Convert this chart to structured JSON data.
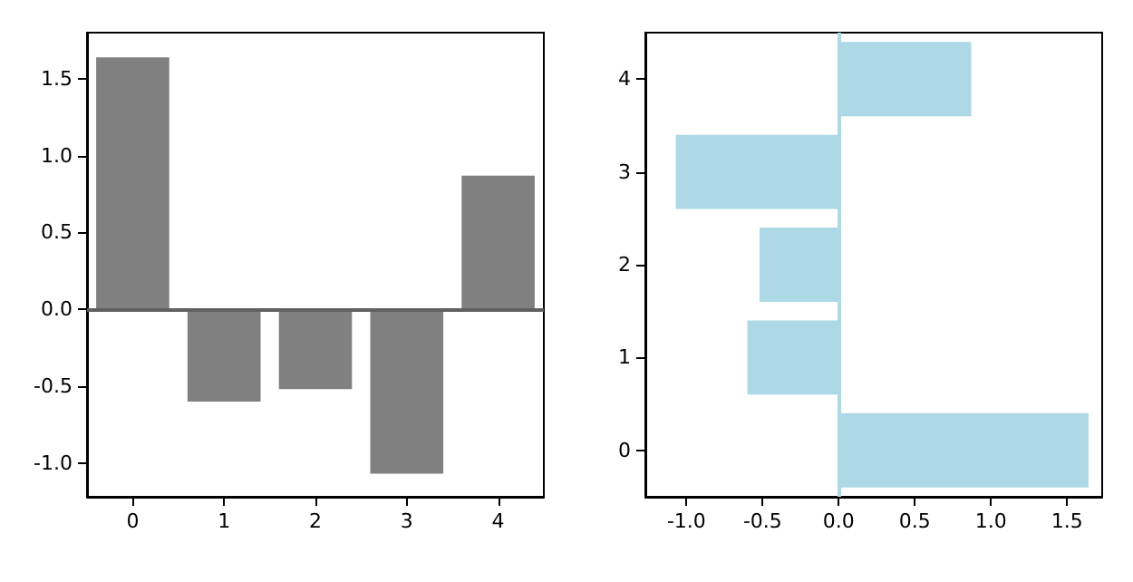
{
  "chart_data": [
    {
      "type": "bar",
      "categories": [
        "0",
        "1",
        "2",
        "3",
        "4"
      ],
      "values": [
        1.64,
        -0.6,
        -0.52,
        -1.07,
        0.87
      ],
      "color": "#808080",
      "ylim": [
        -1.22,
        1.8
      ],
      "yticks": [
        {
          "value": -1,
          "label": "-1.0"
        },
        {
          "value": -0.5,
          "label": "-0.5"
        },
        {
          "value": 0,
          "label": "0.0"
        },
        {
          "value": 0.5,
          "label": "0.5"
        },
        {
          "value": 1,
          "label": "1.0"
        },
        {
          "value": 1.5,
          "label": "1.5"
        }
      ],
      "ref_lines": [
        {
          "axis": "y",
          "value": 0,
          "color": "#606060"
        }
      ],
      "grid": false
    },
    {
      "type": "bar",
      "orientation": "horizontal",
      "categories": [
        "4",
        "3",
        "2",
        "1",
        "0"
      ],
      "values": [
        0.87,
        -1.07,
        -0.52,
        -0.6,
        1.64
      ],
      "color": "#add8e6",
      "xlim": [
        -1.27,
        1.73
      ],
      "xticks": [
        {
          "value": -1,
          "label": "-1.0"
        },
        {
          "value": -0.5,
          "label": "-0.5"
        },
        {
          "value": 0,
          "label": "0.0"
        },
        {
          "value": 0.5,
          "label": "0.5"
        },
        {
          "value": 1,
          "label": "1.0"
        },
        {
          "value": 1.5,
          "label": "1.5"
        }
      ],
      "ref_lines": [
        {
          "axis": "x",
          "value": 0,
          "color": "#add8e6"
        }
      ],
      "grid": false
    }
  ]
}
